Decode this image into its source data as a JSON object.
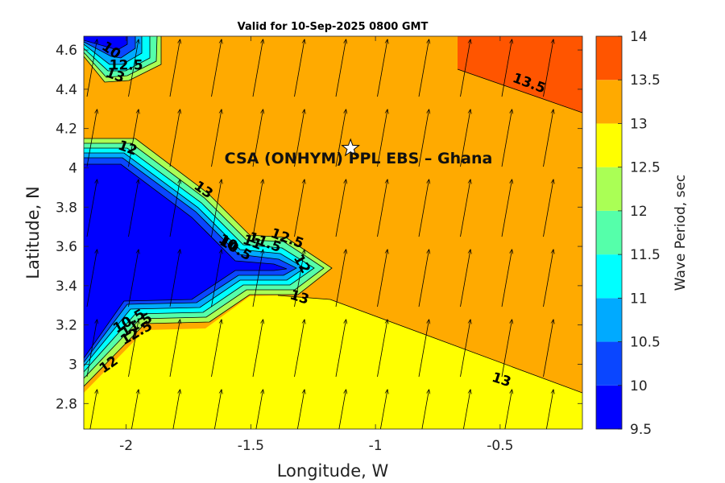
{
  "title": "Valid for 10-Sep-2025 0800 GMT",
  "site_label": "CSA (ONHYM) PPL EBS  – Ghana",
  "site_marker": {
    "lon": -1.1,
    "lat": 4.1,
    "icon": "star-icon"
  },
  "axes": {
    "xlabel": "Longitude, W",
    "ylabel": "Latitude, N",
    "xlim": [
      -2.17,
      -0.17
    ],
    "ylim": [
      2.67,
      4.67
    ],
    "xticks": [
      -2,
      -1.5,
      -1,
      -0.5
    ],
    "xtick_labels": [
      "-2",
      "-1.5",
      "-1",
      "-0.5"
    ],
    "yticks": [
      2.8,
      3,
      3.2,
      3.4,
      3.6,
      3.8,
      4,
      4.2,
      4.4,
      4.6
    ],
    "ytick_labels": [
      "2.8",
      "3",
      "3.2",
      "3.4",
      "3.6",
      "3.8",
      "4",
      "4.2",
      "4.4",
      "4.6"
    ]
  },
  "colorbar": {
    "label": "Wave Period, sec",
    "ticks": [
      "9.5",
      "10",
      "10.5",
      "11",
      "11.5",
      "12",
      "12.5",
      "13",
      "13.5",
      "14"
    ],
    "colors": [
      "#0000ff",
      "#0a46ff",
      "#00aaff",
      "#00ffff",
      "#55ffaa",
      "#aaff55",
      "#ffff00",
      "#ffaa00",
      "#ff5500"
    ]
  },
  "contour_labels": [
    {
      "text": "13.5",
      "lon": -0.39,
      "lat": 4.41,
      "rot": 20
    },
    {
      "text": "13",
      "lon": -1.7,
      "lat": 3.87,
      "rot": 35
    },
    {
      "text": "13",
      "lon": -1.31,
      "lat": 3.32,
      "rot": 18
    },
    {
      "text": "13",
      "lon": -0.5,
      "lat": 2.9,
      "rot": 18
    },
    {
      "text": "12",
      "lon": -2.0,
      "lat": 4.08,
      "rot": 20
    },
    {
      "text": "12",
      "lon": -2.06,
      "lat": 2.98,
      "rot": -35
    },
    {
      "text": "12.5",
      "lon": -1.36,
      "lat": 3.62,
      "rot": 20
    },
    {
      "text": "12.5",
      "lon": -1.95,
      "lat": 3.14,
      "rot": -30
    },
    {
      "text": "12",
      "lon": -1.31,
      "lat": 3.5,
      "rot": 60
    },
    {
      "text": "10.5",
      "lon": -1.98,
      "lat": 3.2,
      "rot": -30
    },
    {
      "text": "11.5",
      "lon": -1.95,
      "lat": 3.18,
      "rot": -30
    },
    {
      "text": "10",
      "lon": -2.07,
      "lat": 4.58,
      "rot": 35
    },
    {
      "text": "12.5",
      "lon": -2.0,
      "lat": 4.5,
      "rot": 0
    },
    {
      "text": "13",
      "lon": -2.05,
      "lat": 4.45,
      "rot": 20
    },
    {
      "text": "10",
      "lon": -1.6,
      "lat": 3.6,
      "rot": 30
    },
    {
      "text": "10.5",
      "lon": -1.57,
      "lat": 3.57,
      "rot": 30
    },
    {
      "text": "11",
      "lon": -1.5,
      "lat": 3.6,
      "rot": 20
    },
    {
      "text": "11.5",
      "lon": -1.45,
      "lat": 3.6,
      "rot": 20
    }
  ],
  "wave_direction_deg_from_north": 10
}
